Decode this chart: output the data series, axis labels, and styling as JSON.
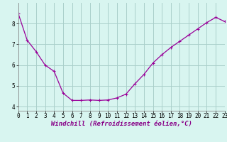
{
  "hours": [
    0,
    1,
    2,
    3,
    4,
    5,
    6,
    7,
    8,
    9,
    10,
    11,
    12,
    13,
    14,
    15,
    16,
    17,
    18,
    19,
    20,
    21,
    22,
    23
  ],
  "values": [
    8.5,
    7.2,
    6.65,
    6.0,
    5.7,
    4.65,
    4.3,
    4.3,
    4.32,
    4.3,
    4.32,
    4.42,
    4.6,
    5.1,
    5.55,
    6.1,
    6.5,
    6.85,
    7.15,
    7.45,
    7.75,
    8.05,
    8.3,
    8.1
  ],
  "line_color": "#990099",
  "marker": "+",
  "marker_size": 3,
  "marker_lw": 0.8,
  "line_width": 0.9,
  "bg_color": "#d8f5f0",
  "grid_color": "#aacfca",
  "xlabel": "Windchill (Refroidissement éolien,°C)",
  "xlabel_fontsize": 6.5,
  "tick_fontsize": 5.5,
  "xlim": [
    0,
    23
  ],
  "ylim": [
    3.8,
    9.0
  ],
  "yticks": [
    4,
    5,
    6,
    7,
    8
  ],
  "xticks": [
    0,
    1,
    2,
    3,
    4,
    5,
    6,
    7,
    8,
    9,
    10,
    11,
    12,
    13,
    14,
    15,
    16,
    17,
    18,
    19,
    20,
    21,
    22,
    23
  ]
}
